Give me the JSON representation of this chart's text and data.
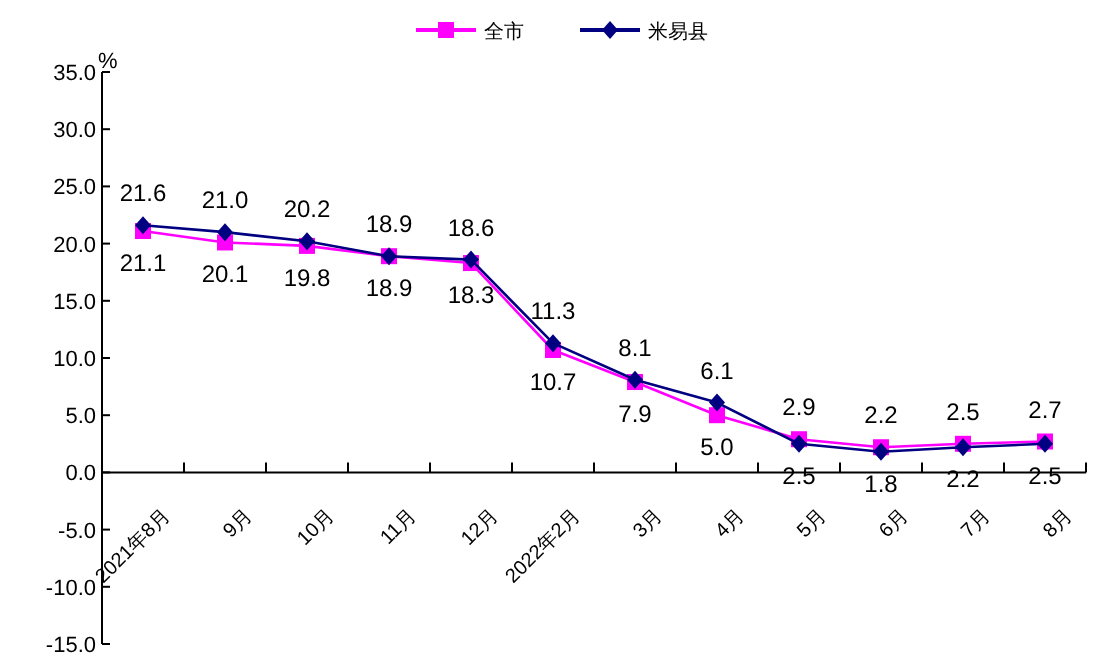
{
  "chart_data": {
    "type": "line",
    "categories": [
      "2021年8月",
      "9月",
      "10月",
      "11月",
      "12月",
      "2022年2月",
      "3月",
      "4月",
      "5月",
      "6月",
      "7月",
      "8月"
    ],
    "ylabel": "%",
    "ylim": [
      -15,
      35
    ],
    "yticks": [
      {
        "value": -15,
        "label": "-15.0"
      },
      {
        "value": -10,
        "label": "-10.0"
      },
      {
        "value": -5,
        "label": "-5.0"
      },
      {
        "value": 0,
        "label": "0.0"
      },
      {
        "value": 5,
        "label": "5.0"
      },
      {
        "value": 10,
        "label": "10.0"
      },
      {
        "value": 15,
        "label": "15.0"
      },
      {
        "value": 20,
        "label": "20.0"
      },
      {
        "value": 25,
        "label": "25.0"
      },
      {
        "value": 30,
        "label": "30.0"
      },
      {
        "value": 35,
        "label": "35.0"
      }
    ],
    "series": [
      {
        "name": "全市",
        "color": "#ff00ff",
        "marker": "square",
        "values": [
          21.1,
          20.1,
          19.8,
          18.9,
          18.3,
          10.7,
          7.9,
          5.0,
          2.9,
          2.2,
          2.5,
          2.7
        ],
        "value_labels": [
          "21.1",
          "20.1",
          "19.8",
          "18.9",
          "18.3",
          "10.7",
          "7.9",
          "5.0",
          "2.9",
          "2.2",
          "2.5",
          "2.7"
        ]
      },
      {
        "name": "米易县",
        "color": "#000080",
        "marker": "diamond",
        "values": [
          21.6,
          21.0,
          20.2,
          18.9,
          18.6,
          11.3,
          8.1,
          6.1,
          2.5,
          1.8,
          2.2,
          2.5
        ],
        "value_labels": [
          "21.6",
          "21.0",
          "20.2",
          "18.9",
          "18.6",
          "11.3",
          "8.1",
          "6.1",
          "2.5",
          "1.8",
          "2.2",
          "2.5"
        ]
      }
    ],
    "legend": "top",
    "grid": false
  }
}
